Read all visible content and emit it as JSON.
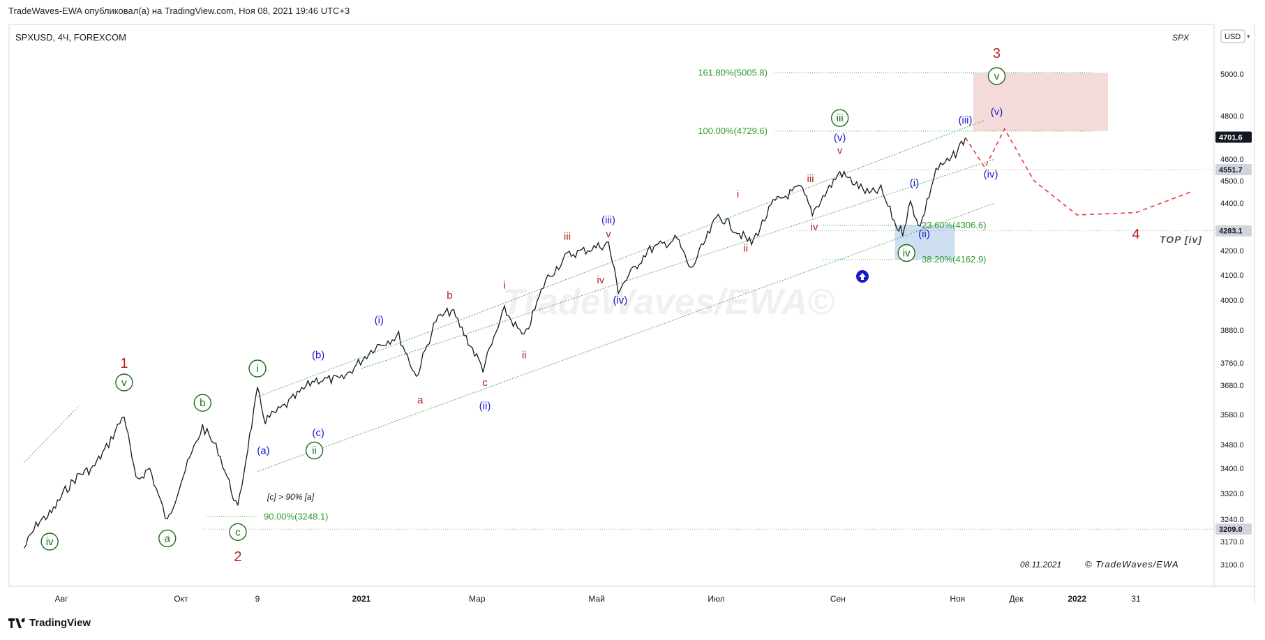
{
  "header": {
    "publisher": "TradeWaves-EWA опубликовал(а) на TradingView.com, Ноя 08, 2021 19:46 UTC+3"
  },
  "chart_header": {
    "symbol": "SPXUSD, 4Ч, FOREXCOM",
    "corner_label": "SPX",
    "currency": "USD"
  },
  "footer": {
    "brand": "TradingView"
  },
  "watermark": "TradeWaves/EWA©",
  "copyright": "© TradeWaves/EWA",
  "date_stamp": "08.11.2021",
  "chart_data": {
    "type": "line",
    "instrument": "SPXUSD",
    "timeframe": "4Ч",
    "x_ticks": [
      "Авг",
      "Окт",
      "9",
      "2021",
      "Мар",
      "Май",
      "Июл",
      "Сен",
      "Ноя",
      "Дек",
      "2022",
      "31"
    ],
    "y_ticks": [
      5000,
      4800,
      4600,
      4500,
      4400,
      4200,
      4100,
      4000,
      3880,
      3760,
      3680,
      3580,
      3480,
      3400,
      3320,
      3240,
      3170,
      3100
    ],
    "ylim": [
      3040,
      5160
    ],
    "price_tags": [
      {
        "value": "4701.6",
        "type": "last"
      },
      {
        "value": "4551.7",
        "type": "level"
      },
      {
        "value": "4283.1",
        "type": "level"
      },
      {
        "value": "3209.0",
        "type": "level"
      }
    ],
    "fib_levels": [
      {
        "label": "161.80%(5005.8)",
        "value": 5005.8
      },
      {
        "label": "100.00%(4729.6)",
        "value": 4729.6
      },
      {
        "label": "23.60%(4306.6)",
        "value": 4306.6
      },
      {
        "label": "38.20%(4162.9)",
        "value": 4162.9
      },
      {
        "label": "90.00%(3248.1)",
        "value": 3248.1
      }
    ],
    "annotations": {
      "top_iv": "TOP [iv]",
      "c_vs_a": "[c] > 90% [a]"
    },
    "price_path": [
      {
        "d": "2020-07-13",
        "v": 3150
      },
      {
        "d": "2020-07-20",
        "v": 3230
      },
      {
        "d": "2020-07-27",
        "v": 3260
      },
      {
        "d": "2020-08-03",
        "v": 3330
      },
      {
        "d": "2020-08-10",
        "v": 3380
      },
      {
        "d": "2020-08-17",
        "v": 3400
      },
      {
        "d": "2020-08-24",
        "v": 3470
      },
      {
        "d": "2020-09-02",
        "v": 3580
      },
      {
        "d": "2020-09-08",
        "v": 3360
      },
      {
        "d": "2020-09-15",
        "v": 3400
      },
      {
        "d": "2020-09-24",
        "v": 3230
      },
      {
        "d": "2020-10-01",
        "v": 3360
      },
      {
        "d": "2020-10-12",
        "v": 3540
      },
      {
        "d": "2020-10-20",
        "v": 3460
      },
      {
        "d": "2020-10-30",
        "v": 3270
      },
      {
        "d": "2020-11-04",
        "v": 3470
      },
      {
        "d": "2020-11-09",
        "v": 3660
      },
      {
        "d": "2020-11-13",
        "v": 3560
      },
      {
        "d": "2020-11-25",
        "v": 3620
      },
      {
        "d": "2020-12-08",
        "v": 3700
      },
      {
        "d": "2020-12-22",
        "v": 3700
      },
      {
        "d": "2021-01-08",
        "v": 3820
      },
      {
        "d": "2021-01-20",
        "v": 3860
      },
      {
        "d": "2021-01-29",
        "v": 3710
      },
      {
        "d": "2021-02-08",
        "v": 3920
      },
      {
        "d": "2021-02-16",
        "v": 3960
      },
      {
        "d": "2021-03-04",
        "v": 3740
      },
      {
        "d": "2021-03-15",
        "v": 3960
      },
      {
        "d": "2021-03-25",
        "v": 3850
      },
      {
        "d": "2021-04-05",
        "v": 4080
      },
      {
        "d": "2021-04-16",
        "v": 4180
      },
      {
        "d": "2021-05-07",
        "v": 4230
      },
      {
        "d": "2021-05-12",
        "v": 4040
      },
      {
        "d": "2021-05-27",
        "v": 4200
      },
      {
        "d": "2021-06-11",
        "v": 4250
      },
      {
        "d": "2021-06-18",
        "v": 4120
      },
      {
        "d": "2021-07-02",
        "v": 4350
      },
      {
        "d": "2021-07-19",
        "v": 4230
      },
      {
        "d": "2021-07-30",
        "v": 4400
      },
      {
        "d": "2021-08-13",
        "v": 4470
      },
      {
        "d": "2021-08-19",
        "v": 4360
      },
      {
        "d": "2021-09-02",
        "v": 4540
      },
      {
        "d": "2021-09-17",
        "v": 4440
      },
      {
        "d": "2021-09-23",
        "v": 4460
      },
      {
        "d": "2021-10-01",
        "v": 4300
      },
      {
        "d": "2021-10-04",
        "v": 4280
      },
      {
        "d": "2021-10-08",
        "v": 4400
      },
      {
        "d": "2021-10-13",
        "v": 4300
      },
      {
        "d": "2021-10-21",
        "v": 4550
      },
      {
        "d": "2021-10-29",
        "v": 4600
      },
      {
        "d": "2021-11-05",
        "v": 4700
      }
    ],
    "projection_path": [
      {
        "d": "2021-11-05",
        "v": 4700
      },
      {
        "d": "2021-11-15",
        "v": 4560
      },
      {
        "d": "2021-11-25",
        "v": 4740
      },
      {
        "d": "2021-12-10",
        "v": 4500
      },
      {
        "d": "2022-01-01",
        "v": 4350
      },
      {
        "d": "2022-01-31",
        "v": 4360
      },
      {
        "d": "2022-02-28",
        "v": 4450
      }
    ],
    "wave_labels": [
      {
        "t": "1",
        "d": "2020-09-02",
        "v": 3760,
        "c": "red",
        "s": "circle-none"
      },
      {
        "t": "v",
        "d": "2020-09-02",
        "v": 3690,
        "c": "green",
        "s": "circle"
      },
      {
        "t": "iv",
        "d": "2020-07-26",
        "v": 3170,
        "c": "green",
        "s": "circle"
      },
      {
        "t": "a",
        "d": "2020-09-24",
        "v": 3180,
        "c": "green",
        "s": "circle"
      },
      {
        "t": "b",
        "d": "2020-10-12",
        "v": 3620,
        "c": "green",
        "s": "circle"
      },
      {
        "t": "c",
        "d": "2020-10-30",
        "v": 3200,
        "c": "green",
        "s": "circle"
      },
      {
        "t": "2",
        "d": "2020-10-30",
        "v": 3125,
        "c": "red",
        "s": "none"
      },
      {
        "t": "i",
        "d": "2020-11-09",
        "v": 3740,
        "c": "green",
        "s": "circle"
      },
      {
        "t": "ii",
        "d": "2020-12-08",
        "v": 3460,
        "c": "green",
        "s": "circle"
      },
      {
        "t": "(a)",
        "d": "2020-11-12",
        "v": 3460,
        "c": "blue",
        "s": "none"
      },
      {
        "t": "(b)",
        "d": "2020-12-10",
        "v": 3790,
        "c": "blue",
        "s": "none"
      },
      {
        "t": "(c)",
        "d": "2020-12-10",
        "v": 3520,
        "c": "blue",
        "s": "none"
      },
      {
        "t": "(i)",
        "d": "2021-01-10",
        "v": 3920,
        "c": "blue",
        "s": "none"
      },
      {
        "t": "a",
        "d": "2021-01-31",
        "v": 3630,
        "c": "red",
        "s": "none"
      },
      {
        "t": "b",
        "d": "2021-02-15",
        "v": 4020,
        "c": "red",
        "s": "none"
      },
      {
        "t": "c",
        "d": "2021-03-05",
        "v": 3690,
        "c": "red",
        "s": "none"
      },
      {
        "t": "(ii)",
        "d": "2021-03-05",
        "v": 3610,
        "c": "blue",
        "s": "none"
      },
      {
        "t": "i",
        "d": "2021-03-15",
        "v": 4060,
        "c": "red",
        "s": "none"
      },
      {
        "t": "ii",
        "d": "2021-03-25",
        "v": 3790,
        "c": "red",
        "s": "none"
      },
      {
        "t": "iii",
        "d": "2021-04-16",
        "v": 4260,
        "c": "red",
        "s": "none"
      },
      {
        "t": "iv",
        "d": "2021-05-03",
        "v": 4080,
        "c": "red",
        "s": "none"
      },
      {
        "t": "(iii)",
        "d": "2021-05-07",
        "v": 4330,
        "c": "blue",
        "s": "none"
      },
      {
        "t": "v",
        "d": "2021-05-07",
        "v": 4270,
        "c": "red",
        "s": "none"
      },
      {
        "t": "(iv)",
        "d": "2021-05-13",
        "v": 4000,
        "c": "blue",
        "s": "none"
      },
      {
        "t": "i",
        "d": "2021-07-12",
        "v": 4440,
        "c": "red",
        "s": "none"
      },
      {
        "t": "ii",
        "d": "2021-07-16",
        "v": 4210,
        "c": "red",
        "s": "none"
      },
      {
        "t": "iii",
        "d": "2021-08-18",
        "v": 4510,
        "c": "red",
        "s": "none"
      },
      {
        "t": "iv",
        "d": "2021-08-20",
        "v": 4300,
        "c": "red",
        "s": "none"
      },
      {
        "t": "v",
        "d": "2021-09-02",
        "v": 4640,
        "c": "red",
        "s": "none"
      },
      {
        "t": "(v)",
        "d": "2021-09-02",
        "v": 4700,
        "c": "blue",
        "s": "none"
      },
      {
        "t": "iii",
        "d": "2021-09-02",
        "v": 4790,
        "c": "green",
        "s": "circle"
      },
      {
        "t": "(i)",
        "d": "2021-10-10",
        "v": 4490,
        "c": "blue",
        "s": "none"
      },
      {
        "t": "(ii)",
        "d": "2021-10-15",
        "v": 4270,
        "c": "blue",
        "s": "none"
      },
      {
        "t": "iv",
        "d": "2021-10-06",
        "v": 4190,
        "c": "green",
        "s": "circle"
      },
      {
        "t": "(iii)",
        "d": "2021-11-05",
        "v": 4780,
        "c": "blue",
        "s": "none"
      },
      {
        "t": "(iv)",
        "d": "2021-11-18",
        "v": 4530,
        "c": "blue",
        "s": "none"
      },
      {
        "t": "(v)",
        "d": "2021-11-21",
        "v": 4820,
        "c": "blue",
        "s": "none"
      },
      {
        "t": "v",
        "d": "2021-11-21",
        "v": 4990,
        "c": "green",
        "s": "circle"
      },
      {
        "t": "3",
        "d": "2021-11-21",
        "v": 5100,
        "c": "red",
        "s": "none"
      },
      {
        "t": "4",
        "d": "2022-01-31",
        "v": 4270,
        "c": "red",
        "s": "none"
      }
    ],
    "colors": {
      "price": "#131722",
      "channel": "#4caf50",
      "fib": "#2e9c2e",
      "red": "#b22222",
      "blue": "#1a1acc",
      "green": "#1b6b1b",
      "target_zone": "#f2d5d3",
      "support_zone": "#c9dcf1"
    }
  }
}
